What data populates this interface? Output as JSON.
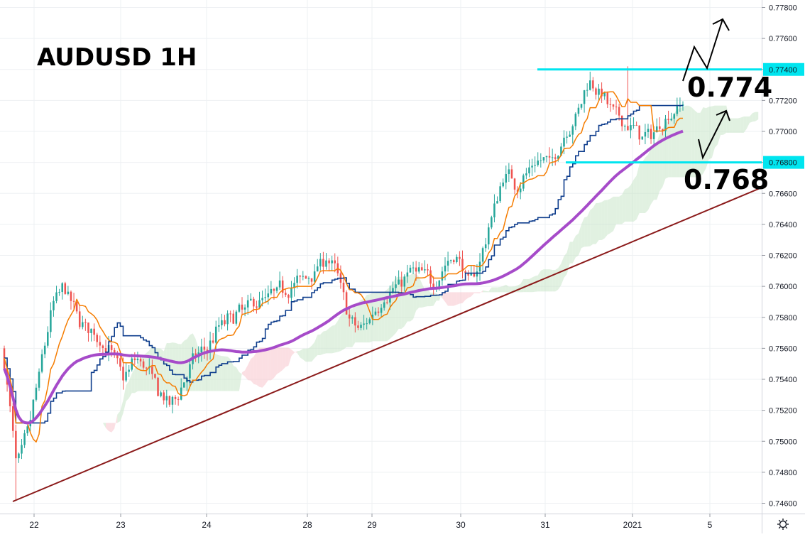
{
  "chart_data": {
    "type": "candlestick",
    "title": "AUDUSD 1H",
    "y_axis": {
      "ticks": [
        "0.77800",
        "0.77600",
        "0.77400",
        "0.77200",
        "0.77000",
        "0.76800",
        "0.76600",
        "0.76400",
        "0.76200",
        "0.76000",
        "0.75800",
        "0.75600",
        "0.75400",
        "0.75200",
        "0.75000",
        "0.74800",
        "0.74600"
      ],
      "range": [
        0.7456,
        0.7784
      ],
      "highlighted": [
        "0.77400",
        "0.76800"
      ]
    },
    "x_axis": {
      "ticks": [
        "22",
        "23",
        "24",
        "28",
        "29",
        "30",
        "31",
        "2021",
        "5"
      ]
    },
    "levels": [
      {
        "label": "0.774",
        "value": 0.774,
        "color": "#00e5ef"
      },
      {
        "label": "0.768",
        "value": 0.768,
        "color": "#00e5ef"
      }
    ],
    "close_path": [
      0.7545,
      0.748,
      0.751,
      0.755,
      0.759,
      0.76,
      0.758,
      0.7572,
      0.7565,
      0.7555,
      0.754,
      0.7555,
      0.7545,
      0.753,
      0.7522,
      0.754,
      0.7555,
      0.756,
      0.7575,
      0.758,
      0.7585,
      0.759,
      0.7592,
      0.7598,
      0.76,
      0.7605,
      0.761,
      0.762,
      0.7605,
      0.7575,
      0.7572,
      0.7585,
      0.7595,
      0.76,
      0.761,
      0.7608,
      0.7602,
      0.7615,
      0.762,
      0.76,
      0.762,
      0.765,
      0.7675,
      0.7665,
      0.7675,
      0.7682,
      0.768,
      0.77,
      0.771,
      0.7735,
      0.7725,
      0.7712,
      0.7705,
      0.77,
      0.7695,
      0.7705,
      0.7712,
      0.772
    ],
    "colors": {
      "up": "#26a69a",
      "down": "#ef5350",
      "ma_long": "#a64bc9",
      "conversion_line": "#f57c00",
      "base_line": "#0d3c8c",
      "cloud": "#f8c5cc",
      "trendline": "#8b1a1a",
      "level": "#00e5ef"
    }
  }
}
